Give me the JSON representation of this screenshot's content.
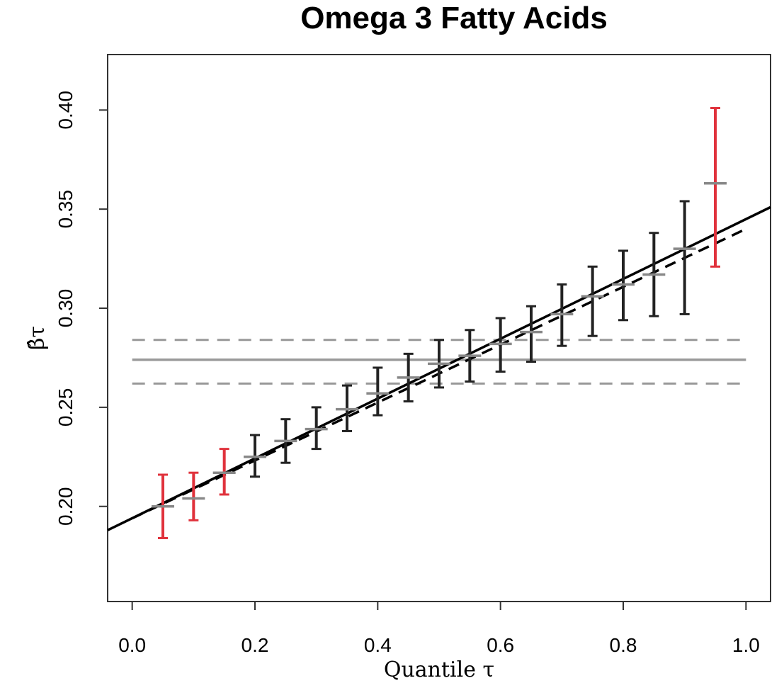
{
  "chart_data": {
    "type": "scatter",
    "title": "Omega 3 Fatty Acids",
    "xlabel": "Quantile τ",
    "ylabel": "β̂τ",
    "xlim": [
      -0.04,
      1.04
    ],
    "ylim": [
      0.152,
      0.428
    ],
    "x_ticks": [
      0.0,
      0.2,
      0.4,
      0.6,
      0.8,
      1.0
    ],
    "x_tick_labels": [
      "0.0",
      "0.2",
      "0.4",
      "0.6",
      "0.8",
      "1.0"
    ],
    "y_ticks": [
      0.2,
      0.25,
      0.3,
      0.35,
      0.4
    ],
    "y_tick_labels": [
      "0.20",
      "0.25",
      "0.30",
      "0.35",
      "0.40"
    ],
    "grid": false,
    "estimates": [
      {
        "tau": 0.05,
        "beta": 0.2,
        "lower": 0.184,
        "upper": 0.216,
        "color": "#e0323c"
      },
      {
        "tau": 0.1,
        "beta": 0.204,
        "lower": 0.193,
        "upper": 0.217,
        "color": "#e0323c"
      },
      {
        "tau": 0.15,
        "beta": 0.217,
        "lower": 0.206,
        "upper": 0.229,
        "color": "#e0323c"
      },
      {
        "tau": 0.2,
        "beta": 0.225,
        "lower": 0.215,
        "upper": 0.236,
        "color": "#222222"
      },
      {
        "tau": 0.25,
        "beta": 0.233,
        "lower": 0.222,
        "upper": 0.244,
        "color": "#222222"
      },
      {
        "tau": 0.3,
        "beta": 0.239,
        "lower": 0.229,
        "upper": 0.25,
        "color": "#222222"
      },
      {
        "tau": 0.35,
        "beta": 0.249,
        "lower": 0.238,
        "upper": 0.261,
        "color": "#222222"
      },
      {
        "tau": 0.4,
        "beta": 0.257,
        "lower": 0.246,
        "upper": 0.27,
        "color": "#222222"
      },
      {
        "tau": 0.45,
        "beta": 0.265,
        "lower": 0.253,
        "upper": 0.277,
        "color": "#222222"
      },
      {
        "tau": 0.5,
        "beta": 0.272,
        "lower": 0.26,
        "upper": 0.284,
        "color": "#222222"
      },
      {
        "tau": 0.55,
        "beta": 0.276,
        "lower": 0.263,
        "upper": 0.289,
        "color": "#222222"
      },
      {
        "tau": 0.6,
        "beta": 0.282,
        "lower": 0.268,
        "upper": 0.295,
        "color": "#222222"
      },
      {
        "tau": 0.65,
        "beta": 0.288,
        "lower": 0.273,
        "upper": 0.301,
        "color": "#222222"
      },
      {
        "tau": 0.7,
        "beta": 0.297,
        "lower": 0.281,
        "upper": 0.312,
        "color": "#222222"
      },
      {
        "tau": 0.75,
        "beta": 0.306,
        "lower": 0.286,
        "upper": 0.321,
        "color": "#222222"
      },
      {
        "tau": 0.8,
        "beta": 0.312,
        "lower": 0.294,
        "upper": 0.329,
        "color": "#222222"
      },
      {
        "tau": 0.85,
        "beta": 0.317,
        "lower": 0.296,
        "upper": 0.338,
        "color": "#222222"
      },
      {
        "tau": 0.9,
        "beta": 0.33,
        "lower": 0.297,
        "upper": 0.354,
        "color": "#222222"
      },
      {
        "tau": 0.95,
        "beta": 0.363,
        "lower": 0.321,
        "upper": 0.401,
        "color": "#e0323c"
      }
    ],
    "fit_line": {
      "x": [
        -0.04,
        1.04
      ],
      "y": [
        0.188,
        0.351
      ],
      "color": "#000000",
      "style": "solid"
    },
    "fit_line_dashed": {
      "x": [
        0.0,
        1.0
      ],
      "y": [
        0.194,
        0.34
      ],
      "color": "#000000",
      "style": "dashed"
    },
    "reference_line": {
      "y": 0.274,
      "x": [
        0.0,
        1.0
      ],
      "color": "#999999",
      "style": "solid"
    },
    "reference_band": {
      "lower": 0.262,
      "upper": 0.284,
      "x": [
        0.0,
        1.0
      ],
      "color": "#999999",
      "style": "dashed"
    }
  }
}
